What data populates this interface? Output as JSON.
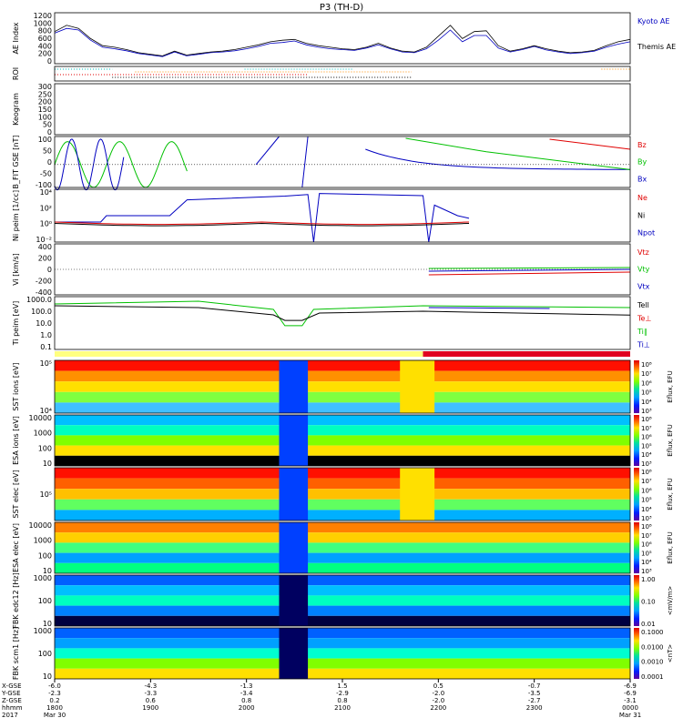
{
  "title": "P3 (TH-D)",
  "colors": {
    "red": "#e00000",
    "green": "#00c000",
    "blue": "#0000c0",
    "black": "#000000",
    "orange": "#ff8c00",
    "cyan": "#00c0c0"
  },
  "chart_data": {
    "type": "spectrogram-stack",
    "x_ticks": [
      {
        "xgse": "-6.0",
        "ygse": "-2.3",
        "zgse": "0.2",
        "hhmm": "1800"
      },
      {
        "xgse": "-4.3",
        "ygse": "-3.3",
        "zgse": "0.6",
        "hhmm": "1900"
      },
      {
        "xgse": "-1.3",
        "ygse": "-3.4",
        "zgse": "0.8",
        "hhmm": "2000"
      },
      {
        "xgse": "1.5",
        "ygse": "-2.9",
        "zgse": "0.8",
        "hhmm": "2100"
      },
      {
        "xgse": "0.5",
        "ygse": "-2.0",
        "zgse": "-2.0",
        "hhmm": "2200"
      },
      {
        "xgse": "-0.7",
        "ygse": "-3.5",
        "zgse": "-2.7",
        "hhmm": "2300"
      },
      {
        "xgse": "-6.9",
        "ygse": "-6.9",
        "zgse": "-3.1",
        "hhmm": "0000"
      }
    ],
    "x_row_labels": [
      "X-GSE",
      "Y-GSE",
      "Z-GSE",
      "hhmm",
      "2017"
    ],
    "date_start": "Mar 30",
    "date_end": "Mar 31",
    "panels": [
      {
        "id": "ae",
        "ylabel": "AE Index",
        "yticks": [
          "1200",
          "1000",
          "800",
          "600",
          "400",
          "200",
          "0"
        ],
        "legend": [
          "Kyoto AE",
          "Themis AE"
        ],
        "series": [
          {
            "name": "Kyoto AE",
            "values": [
              780,
              900,
              860,
              600,
              420,
              380,
              330,
              260,
              220,
              180,
              300,
              200,
              240,
              280,
              300,
              330,
              380,
              440,
              520,
              540,
              580,
              480,
              420,
              380,
              360,
              340,
              400,
              480,
              380,
              300,
              280,
              380,
              600,
              860,
              560,
              720,
              720,
              400,
              300,
              360,
              440,
              350,
              300,
              260,
              280,
              320,
              420,
              500,
              560
            ]
          },
          {
            "name": "Themis AE",
            "values": [
              820,
              980,
              900,
              640,
              460,
              420,
              360,
              280,
              240,
              200,
              320,
              220,
              260,
              300,
              320,
              360,
              420,
              480,
              560,
              600,
              620,
              520,
              460,
              420,
              380,
              360,
              420,
              520,
              400,
              320,
              300,
              420,
              700,
              980,
              640,
              820,
              840,
              460,
              320,
              380,
              460,
              380,
              320,
              280,
              300,
              340,
              460,
              560,
              620
            ]
          }
        ]
      },
      {
        "id": "roi",
        "ylabel": "ROI"
      },
      {
        "id": "keogram",
        "ylabel": "Keogram",
        "yticks": [
          "300",
          "250",
          "200",
          "150",
          "100",
          "50",
          "0"
        ]
      },
      {
        "id": "bfit",
        "ylabel": "B_FIT GSE [nT]",
        "yticks": [
          "100",
          "50",
          "0",
          "-50",
          "-100"
        ],
        "legend": [
          "Bz",
          "By",
          "Bx"
        ]
      },
      {
        "id": "ni",
        "ylabel": "Ni peim [1/cc]",
        "yticks": [
          "10⁴",
          "10²",
          "10⁰",
          "10⁻²"
        ],
        "legend": [
          "Ne",
          "Ni",
          "Npot"
        ]
      },
      {
        "id": "vi",
        "ylabel": "Vi [km/s]",
        "yticks": [
          "400",
          "200",
          "0",
          "-200",
          "-400"
        ],
        "legend": [
          "Vtz",
          "Vty",
          "Vtx"
        ]
      },
      {
        "id": "ti",
        "ylabel": "Ti peim [eV]",
        "yticks": [
          "1000.0",
          "100.0",
          "10.0",
          "1.0",
          "0.1"
        ],
        "legend": [
          "Tell",
          "Te⊥",
          "Ti∥",
          "Ti⊥"
        ]
      },
      {
        "id": "sst1",
        "ylabel": "SST ions [eV]",
        "yticks": [
          "10⁵",
          "10⁴"
        ],
        "cbar": [
          "10⁸",
          "10⁷",
          "10⁶",
          "10⁵",
          "10⁴",
          "10³"
        ],
        "cbar_label": "Eflux, EFU"
      },
      {
        "id": "esa1",
        "ylabel": "ESA ions [eV]",
        "yticks": [
          "10000",
          "1000",
          "100",
          "10"
        ],
        "cbar": [
          "10⁸",
          "10⁷",
          "10⁶",
          "10⁵",
          "10⁴",
          "10³"
        ],
        "cbar_label": "Eflux, EFU"
      },
      {
        "id": "sst2",
        "ylabel": "SST elec [eV]",
        "yticks": [
          "10⁵"
        ],
        "cbar": [
          "10⁸",
          "10⁷",
          "10⁶",
          "10⁵",
          "10⁴",
          "10³"
        ],
        "cbar_label": "Eflux, EFU"
      },
      {
        "id": "esa2",
        "ylabel": "ESA elec [eV]",
        "yticks": [
          "10000",
          "1000",
          "100",
          "10"
        ],
        "cbar": [
          "10⁸",
          "10⁷",
          "10⁶",
          "10⁵",
          "10⁴",
          "10³"
        ],
        "cbar_label": "Eflux, EFU"
      },
      {
        "id": "fbk1",
        "ylabel": "FBK edc12 [Hz]",
        "yticks": [
          "1000",
          "100",
          "10"
        ],
        "cbar": [
          "1.00",
          "0.10",
          "0.01"
        ],
        "cbar_label": "<mV/m>"
      },
      {
        "id": "fbk2",
        "ylabel": "FBK scm1 [Hz]",
        "yticks": [
          "1000",
          "100",
          "10"
        ],
        "cbar": [
          "0.1000",
          "0.0100",
          "0.0010",
          "0.0001"
        ],
        "cbar_label": "<nT>"
      }
    ]
  }
}
